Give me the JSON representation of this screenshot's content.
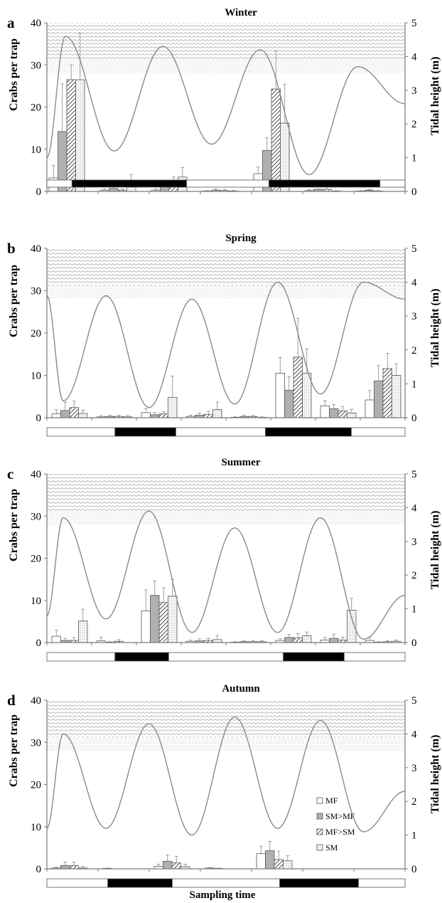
{
  "figure": {
    "xlabel": "Sampling time",
    "ylabel_left": "Crabs per trap",
    "ylabel_right": "Tidal height (m)"
  },
  "legend": {
    "entries": [
      {
        "label": "MF",
        "pattern": "white"
      },
      {
        "label": "SM>MF",
        "pattern": "grey"
      },
      {
        "label": "MF>SM",
        "pattern": "hatch"
      },
      {
        "label": "SM",
        "pattern": "dots"
      }
    ]
  },
  "colors": {
    "mf": "#ffffff",
    "sm_mf": "#b0b0b0",
    "mf_sm": "#ffffff",
    "sm": "#ffffff",
    "tide_line": "#8a8a8a",
    "axis": "#7a7a7a",
    "night": "#000000"
  },
  "chart_data": [
    {
      "type": "bar",
      "panel": "a",
      "title": "Winter",
      "ylim": [
        0,
        40
      ],
      "yticks": [
        0,
        10,
        20,
        30,
        40
      ],
      "y2lim": [
        0,
        5
      ],
      "y2ticks": [
        0,
        1,
        2,
        3,
        4,
        5
      ],
      "series_names": [
        "MF",
        "SM>MF",
        "MF>SM",
        "SM"
      ],
      "groups": [
        {
          "values": [
            3.2,
            14.2,
            26.5,
            26.5
          ],
          "errors": [
            3.0,
            11.3,
            3.5,
            11.0
          ]
        },
        {
          "values": [
            0.3,
            0.7,
            0.3,
            2.0
          ],
          "errors": [
            0.3,
            0.5,
            0.3,
            2.0
          ]
        },
        {
          "values": [
            0.3,
            1.2,
            2.2,
            3.4
          ],
          "errors": [
            0.3,
            0.8,
            1.2,
            2.3
          ]
        },
        {
          "values": [
            0.1,
            0.3,
            0.2,
            0.1
          ],
          "errors": [
            0.1,
            0.3,
            0.3,
            0.2
          ]
        },
        {
          "values": [
            4.2,
            9.7,
            24.3,
            16.2
          ],
          "errors": [
            1.6,
            3.0,
            9.0,
            9.2
          ]
        },
        {
          "values": [
            0.2,
            0.5,
            0.5,
            0.1
          ],
          "errors": [
            0.2,
            0.6,
            0.8,
            0.1
          ]
        },
        {
          "values": [
            0.1,
            0.3,
            0.1,
            0.0
          ],
          "errors": [
            0.1,
            0.2,
            0.1,
            0.0
          ]
        }
      ],
      "tide": {
        "start": 1.0,
        "extrema": [
          4.6,
          1.2,
          4.3,
          1.4,
          4.2,
          0.5,
          3.7
        ],
        "end": 2.6
      },
      "light_bar": [
        {
          "day": true,
          "fraction": 0.07
        },
        {
          "day": false,
          "fraction": 0.32
        },
        {
          "day": true,
          "fraction": 0.23
        },
        {
          "day": false,
          "fraction": 0.31
        },
        {
          "day": true,
          "fraction": 0.07
        }
      ]
    },
    {
      "type": "bar",
      "panel": "b",
      "title": "Spring",
      "ylim": [
        0,
        40
      ],
      "yticks": [
        0,
        10,
        20,
        30,
        40
      ],
      "y2lim": [
        0,
        5
      ],
      "y2ticks": [
        0,
        1,
        2,
        3,
        4,
        5
      ],
      "series_names": [
        "MF",
        "SM>MF",
        "MF>SM",
        "SM"
      ],
      "groups": [
        {
          "values": [
            0.9,
            1.7,
            2.4,
            1.0
          ],
          "errors": [
            1.0,
            2.0,
            1.5,
            0.8
          ]
        },
        {
          "values": [
            0.2,
            0.3,
            0.3,
            0.2
          ],
          "errors": [
            0.3,
            0.3,
            0.3,
            0.3
          ]
        },
        {
          "values": [
            1.2,
            0.7,
            0.9,
            4.8
          ],
          "errors": [
            0.9,
            0.5,
            0.5,
            5.0
          ]
        },
        {
          "values": [
            0.3,
            0.6,
            0.8,
            1.9
          ],
          "errors": [
            0.3,
            0.5,
            0.7,
            1.8
          ]
        },
        {
          "values": [
            0.1,
            0.3,
            0.3,
            0.1
          ],
          "errors": [
            0.1,
            0.3,
            0.2,
            0.1
          ]
        },
        {
          "values": [
            10.5,
            6.5,
            14.3,
            10.5
          ],
          "errors": [
            3.7,
            3.2,
            9.2,
            5.8
          ]
        },
        {
          "values": [
            2.8,
            2.1,
            1.6,
            1.1
          ],
          "errors": [
            1.2,
            1.0,
            1.0,
            0.9
          ]
        },
        {
          "values": [
            4.2,
            8.7,
            11.6,
            10.0
          ],
          "errors": [
            2.2,
            3.6,
            3.6,
            2.7
          ]
        }
      ],
      "tide": {
        "start": 3.6,
        "extrema": [
          0.5,
          3.6,
          0.3,
          3.5,
          0.4,
          4.0,
          0.7,
          4.0
        ],
        "end": 3.5
      },
      "light_bar": [
        {
          "day": true,
          "fraction": 0.19
        },
        {
          "day": false,
          "fraction": 0.17
        },
        {
          "day": true,
          "fraction": 0.25
        },
        {
          "day": false,
          "fraction": 0.24
        },
        {
          "day": true,
          "fraction": 0.15
        }
      ]
    },
    {
      "type": "bar",
      "panel": "c",
      "title": "Summer",
      "ylim": [
        0,
        40
      ],
      "yticks": [
        0,
        10,
        20,
        30,
        40
      ],
      "y2lim": [
        0,
        5
      ],
      "y2ticks": [
        0,
        1,
        2,
        3,
        4,
        5
      ],
      "series_names": [
        "MF",
        "SM>MF",
        "MF>SM",
        "SM"
      ],
      "groups": [
        {
          "values": [
            1.5,
            0.5,
            0.5,
            5.1
          ],
          "errors": [
            1.4,
            0.5,
            0.7,
            2.8
          ]
        },
        {
          "values": [
            0.4,
            0.1,
            0.3,
            0.0
          ],
          "errors": [
            0.9,
            0.1,
            0.4,
            0.0
          ]
        },
        {
          "values": [
            7.5,
            11.2,
            9.5,
            11.0
          ],
          "errors": [
            5.0,
            3.4,
            3.5,
            4.0
          ]
        },
        {
          "values": [
            0.3,
            0.4,
            0.5,
            0.7
          ],
          "errors": [
            0.3,
            0.5,
            0.5,
            1.0
          ]
        },
        {
          "values": [
            0.1,
            0.2,
            0.2,
            0.2
          ],
          "errors": [
            0.1,
            0.2,
            0.3,
            0.3
          ]
        },
        {
          "values": [
            0.5,
            1.2,
            1.1,
            1.6
          ],
          "errors": [
            0.4,
            0.7,
            1.0,
            0.9
          ]
        },
        {
          "values": [
            0.6,
            1.0,
            0.6,
            7.7
          ],
          "errors": [
            0.6,
            1.0,
            0.7,
            2.8
          ]
        },
        {
          "values": [
            0.5,
            0.1,
            0.2,
            0.3
          ],
          "errors": [
            0.7,
            0.1,
            0.2,
            0.3
          ]
        }
      ],
      "tide": {
        "start": 0.8,
        "extrema": [
          3.7,
          0.7,
          3.9,
          0.3,
          3.4,
          0.3,
          3.7,
          0.1
        ],
        "end": 1.4
      },
      "light_bar": [
        {
          "day": true,
          "fraction": 0.19
        },
        {
          "day": false,
          "fraction": 0.15
        },
        {
          "day": true,
          "fraction": 0.32
        },
        {
          "day": false,
          "fraction": 0.17
        },
        {
          "day": true,
          "fraction": 0.17
        }
      ]
    },
    {
      "type": "bar",
      "panel": "d",
      "title": "Autumn",
      "ylim": [
        0,
        40
      ],
      "yticks": [
        0,
        10,
        20,
        30,
        40
      ],
      "y2lim": [
        0,
        5
      ],
      "y2ticks": [
        0,
        1,
        2,
        3,
        4,
        5
      ],
      "series_names": [
        "MF",
        "SM>MF",
        "MF>SM",
        "SM"
      ],
      "groups": [
        {
          "values": [
            0.2,
            0.8,
            0.8,
            0.2
          ],
          "errors": [
            0.2,
            0.8,
            0.8,
            0.4
          ]
        },
        {
          "values": [
            0.1,
            0.0,
            0.0,
            0.0
          ],
          "errors": [
            0.1,
            0.0,
            0.0,
            0.0
          ]
        },
        {
          "values": [
            0.6,
            1.8,
            1.4,
            0.5
          ],
          "errors": [
            0.5,
            1.5,
            1.6,
            0.6
          ]
        },
        {
          "values": [
            0.2,
            0.1,
            0.0,
            0.0
          ],
          "errors": [
            0.1,
            0.1,
            0.0,
            0.0
          ]
        },
        {
          "values": [
            3.6,
            4.3,
            2.2,
            1.9
          ],
          "errors": [
            1.8,
            2.2,
            2.0,
            1.2
          ]
        },
        {
          "values": [
            0.0,
            0.0,
            0.0,
            0.0
          ],
          "errors": [
            0.0,
            0.0,
            0.0,
            0.0
          ]
        },
        {
          "values": [
            0.0,
            0.0,
            0.0,
            0.0
          ],
          "errors": [
            0.0,
            0.0,
            0.0,
            0.0
          ]
        }
      ],
      "tide": {
        "start": 1.2,
        "extrema": [
          4.0,
          1.2,
          4.3,
          1.0,
          4.5,
          1.2,
          4.4,
          1.1
        ],
        "end": 2.3
      },
      "light_bar": [
        {
          "day": true,
          "fraction": 0.17
        },
        {
          "day": false,
          "fraction": 0.18
        },
        {
          "day": true,
          "fraction": 0.3
        },
        {
          "day": false,
          "fraction": 0.22
        },
        {
          "day": true,
          "fraction": 0.13
        }
      ]
    }
  ]
}
